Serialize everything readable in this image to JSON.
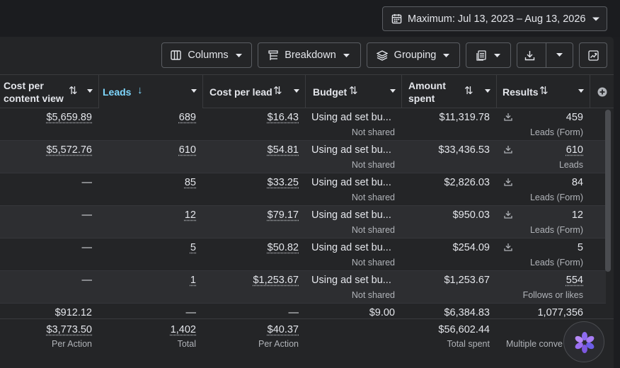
{
  "date_range": {
    "label": "Maximum: Jul 13, 2023 – Aug 13, 2026"
  },
  "toolbar": {
    "columns": "Columns",
    "breakdown": "Breakdown",
    "grouping": "Grouping"
  },
  "headers": {
    "cost_per_content_view": "Cost per content view",
    "leads": "Leads",
    "cost_per_lead": "Cost per lead",
    "budget": "Budget",
    "amount_spent": "Amount spent",
    "results": "Results"
  },
  "rows": [
    {
      "cpcv": "$5,659.89",
      "leads": "689",
      "cpl": "$16.43",
      "budget": "Using ad set bu...",
      "budget_sub": "Not shared",
      "spent": "$11,319.78",
      "results": "459",
      "results_sub": "Leads (Form)"
    },
    {
      "cpcv": "$5,572.76",
      "leads": "610",
      "cpl": "$54.81",
      "budget": "Using ad set bu...",
      "budget_sub": "Not shared",
      "spent": "$33,436.53",
      "results": "610",
      "results_sub": "Leads"
    },
    {
      "cpcv": "—",
      "leads": "85",
      "cpl": "$33.25",
      "budget": "Using ad set bu...",
      "budget_sub": "Not shared",
      "spent": "$2,826.03",
      "results": "84",
      "results_sub": "Leads (Form)"
    },
    {
      "cpcv": "—",
      "leads": "12",
      "cpl": "$79.17",
      "budget": "Using ad set bu...",
      "budget_sub": "Not shared",
      "spent": "$950.03",
      "results": "12",
      "results_sub": "Leads (Form)"
    },
    {
      "cpcv": "—",
      "leads": "5",
      "cpl": "$50.82",
      "budget": "Using ad set bu...",
      "budget_sub": "Not shared",
      "spent": "$254.09",
      "results": "5",
      "results_sub": "Leads (Form)"
    },
    {
      "cpcv": "—",
      "leads": "1",
      "cpl": "$1,253.67",
      "budget": "Using ad set bu...",
      "budget_sub": "Not shared",
      "spent": "$1,253.67",
      "results": "554",
      "results_sub": "Follows or likes"
    }
  ],
  "partial_row": {
    "cpcv": "$912.12",
    "leads": "—",
    "cpl": "—",
    "budget": "$9.00",
    "spent": "$6,384.83",
    "results": "1,077,356"
  },
  "footer": {
    "cpcv": "$3,773.50",
    "cpcv_label": "Per Action",
    "leads": "1,402",
    "leads_label": "Total",
    "cpl": "$40.37",
    "cpl_label": "Per Action",
    "spent": "$56,602.44",
    "spent_label": "Total spent",
    "results_label": "Multiple conve"
  },
  "icons": {
    "calendar": "calendar-icon",
    "columns": "columns-icon",
    "breakdown": "breakdown-icon",
    "grouping": "layers-icon",
    "reports": "reports-icon",
    "export": "download-icon",
    "chart": "chart-icon",
    "add_column": "plus-circle-icon"
  }
}
